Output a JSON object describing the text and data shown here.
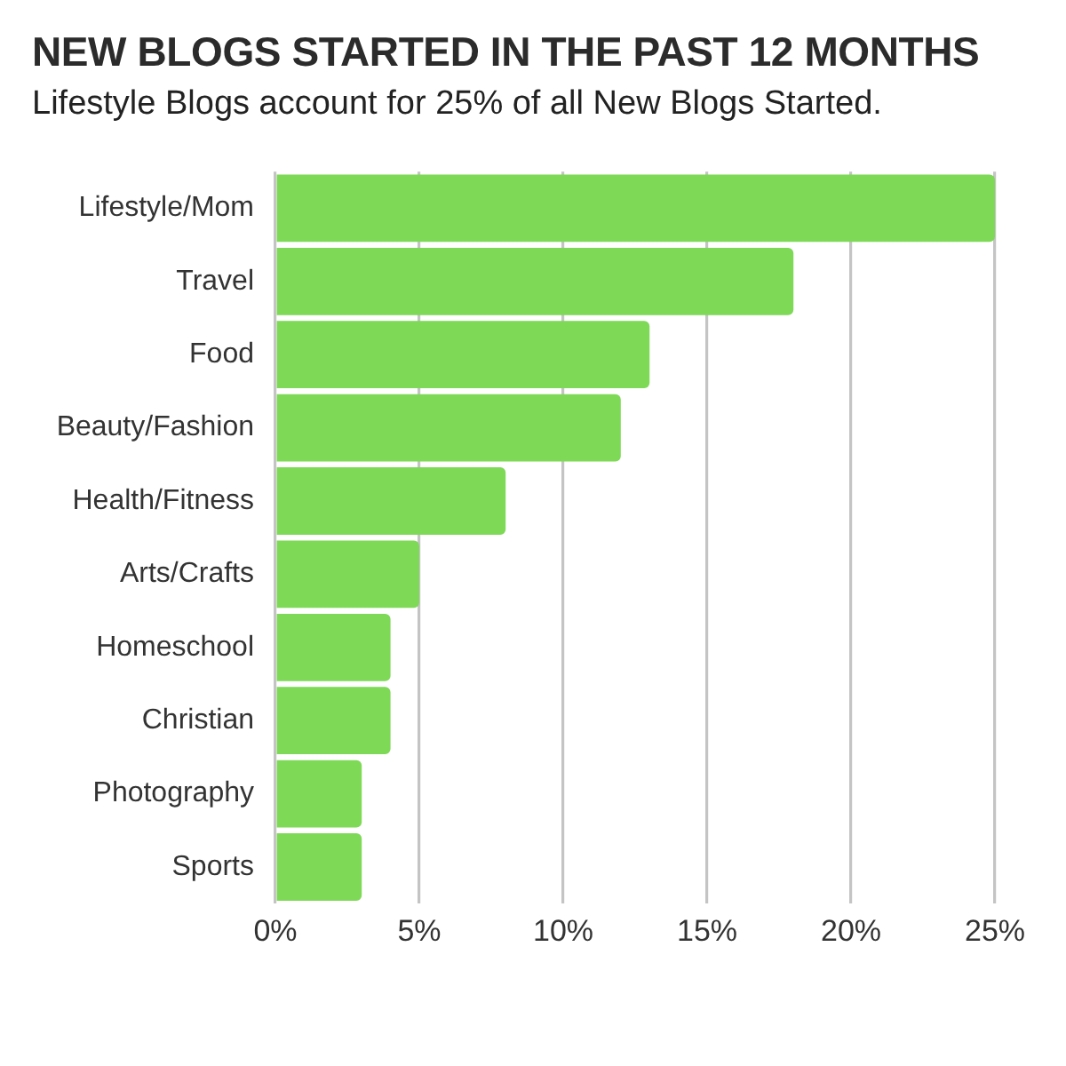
{
  "chart_data": {
    "type": "bar",
    "orientation": "horizontal",
    "title": "NEW BLOGS STARTED IN THE PAST 12 MONTHS",
    "subtitle": "Lifestyle Blogs account for 25% of all New Blogs Started.",
    "categories": [
      "Lifestyle/Mom",
      "Travel",
      "Food",
      "Beauty/Fashion",
      "Health/Fitness",
      "Arts/Crafts",
      "Homeschool",
      "Christian",
      "Photography",
      "Sports"
    ],
    "values": [
      25,
      18,
      13,
      12,
      8,
      5,
      4,
      4,
      3,
      3
    ],
    "color": "#7ed957",
    "xlim": [
      0,
      25
    ],
    "xticks": [
      {
        "value": 0,
        "label": "0%"
      },
      {
        "value": 5,
        "label": "5%"
      },
      {
        "value": 10,
        "label": "10%"
      },
      {
        "value": 15,
        "label": "15%"
      },
      {
        "value": 20,
        "label": "20%"
      },
      {
        "value": 25,
        "label": "25%"
      }
    ],
    "grid": "x"
  }
}
